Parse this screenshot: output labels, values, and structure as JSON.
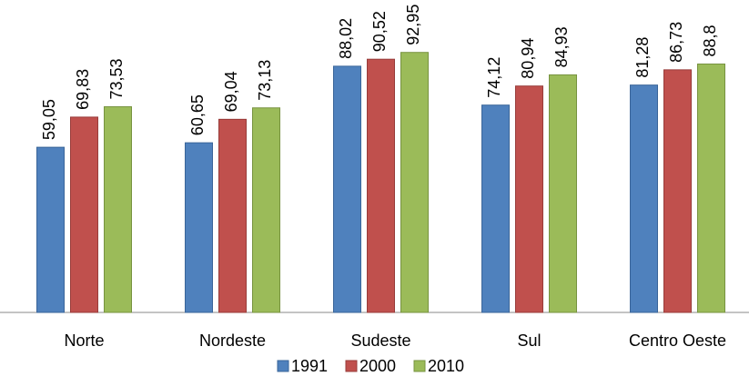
{
  "chart_data": {
    "type": "bar",
    "categories": [
      "Norte",
      "Nordeste",
      "Sudeste",
      "Sul",
      "Centro Oeste"
    ],
    "series": [
      {
        "name": "1991",
        "color": "#4f81bd",
        "stroke": "#3a6599",
        "values": [
          59.05,
          60.65,
          88.02,
          74.12,
          81.28
        ],
        "value_labels": [
          "59,05",
          "60,65",
          "88,02",
          "74,12",
          "81,28"
        ]
      },
      {
        "name": "2000",
        "color": "#c0504d",
        "stroke": "#983c3a",
        "values": [
          69.83,
          69.04,
          90.52,
          80.94,
          86.73
        ],
        "value_labels": [
          "69,83",
          "69,04",
          "90,52",
          "80,94",
          "86,73"
        ]
      },
      {
        "name": "2010",
        "color": "#9bbb59",
        "stroke": "#779340",
        "values": [
          73.53,
          73.13,
          92.95,
          84.93,
          88.8
        ],
        "value_labels": [
          "73,53",
          "73,13",
          "92,95",
          "84,93",
          "88,8"
        ]
      }
    ],
    "ylim": [
      0,
      100
    ],
    "legend": "bottom"
  }
}
